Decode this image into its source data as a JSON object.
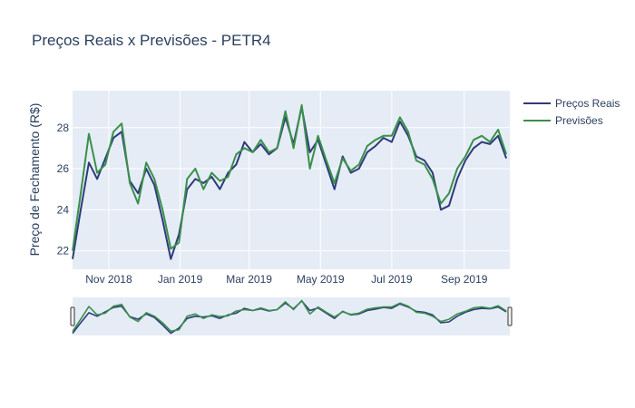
{
  "chart_data": {
    "type": "line",
    "title": "Preços Reais x Previsões - PETR4",
    "xlabel": "",
    "ylabel": "Preço de Fechamento (R$)",
    "xlim": [
      "2018-10-01",
      "2019-10-10"
    ],
    "ylim": [
      21.1,
      29.8
    ],
    "x_ticks": [
      "Nov 2018",
      "Jan 2019",
      "Mar 2019",
      "May 2019",
      "Jul 2019",
      "Sep 2019"
    ],
    "y_ticks": [
      "22",
      "24",
      "26",
      "28"
    ],
    "grid": true,
    "legend_position": "top-right",
    "has_range_slider": true,
    "x": [
      "2018-10-01",
      "2018-10-08",
      "2018-10-15",
      "2018-10-22",
      "2018-10-29",
      "2018-11-05",
      "2018-11-12",
      "2018-11-19",
      "2018-11-26",
      "2018-12-03",
      "2018-12-10",
      "2018-12-17",
      "2018-12-24",
      "2018-12-31",
      "2019-01-07",
      "2019-01-14",
      "2019-01-21",
      "2019-01-28",
      "2019-02-04",
      "2019-02-11",
      "2019-02-18",
      "2019-02-25",
      "2019-03-04",
      "2019-03-11",
      "2019-03-18",
      "2019-03-25",
      "2019-04-01",
      "2019-04-08",
      "2019-04-15",
      "2019-04-22",
      "2019-04-29",
      "2019-05-06",
      "2019-05-13",
      "2019-05-20",
      "2019-05-27",
      "2019-06-03",
      "2019-06-10",
      "2019-06-17",
      "2019-06-24",
      "2019-07-01",
      "2019-07-08",
      "2019-07-15",
      "2019-07-22",
      "2019-07-29",
      "2019-08-05",
      "2019-08-12",
      "2019-08-19",
      "2019-08-26",
      "2019-09-02",
      "2019-09-09",
      "2019-09-16",
      "2019-09-23",
      "2019-09-30",
      "2019-10-07"
    ],
    "series": [
      {
        "name": "Preços Reais",
        "color": "#2e3b7a",
        "values": [
          21.6,
          24.0,
          26.3,
          25.5,
          26.5,
          27.5,
          27.8,
          25.4,
          24.8,
          26.0,
          25.2,
          23.5,
          21.6,
          22.8,
          25.0,
          25.5,
          25.3,
          25.6,
          25.0,
          25.8,
          26.2,
          27.3,
          26.8,
          27.2,
          26.7,
          27.0,
          28.5,
          27.2,
          29.0,
          26.8,
          27.4,
          26.2,
          25.0,
          26.6,
          25.8,
          26.0,
          26.8,
          27.1,
          27.5,
          27.3,
          28.3,
          27.6,
          26.6,
          26.4,
          25.8,
          24.0,
          24.2,
          25.5,
          26.4,
          27.0,
          27.3,
          27.2,
          27.6,
          26.5
        ]
      },
      {
        "name": "Previsões",
        "color": "#3a8f4a",
        "values": [
          22.0,
          24.8,
          27.7,
          25.8,
          26.2,
          27.8,
          28.2,
          25.3,
          24.3,
          26.3,
          25.5,
          24.0,
          22.1,
          22.4,
          25.5,
          26.0,
          25.0,
          25.8,
          25.4,
          25.6,
          26.7,
          27.0,
          26.8,
          27.4,
          26.8,
          27.0,
          28.8,
          27.0,
          29.1,
          26.0,
          27.6,
          26.4,
          25.3,
          26.5,
          25.9,
          26.2,
          27.1,
          27.4,
          27.6,
          27.6,
          28.5,
          27.8,
          26.4,
          26.2,
          25.5,
          24.3,
          24.8,
          26.0,
          26.6,
          27.4,
          27.6,
          27.3,
          27.9,
          26.7
        ]
      }
    ]
  }
}
